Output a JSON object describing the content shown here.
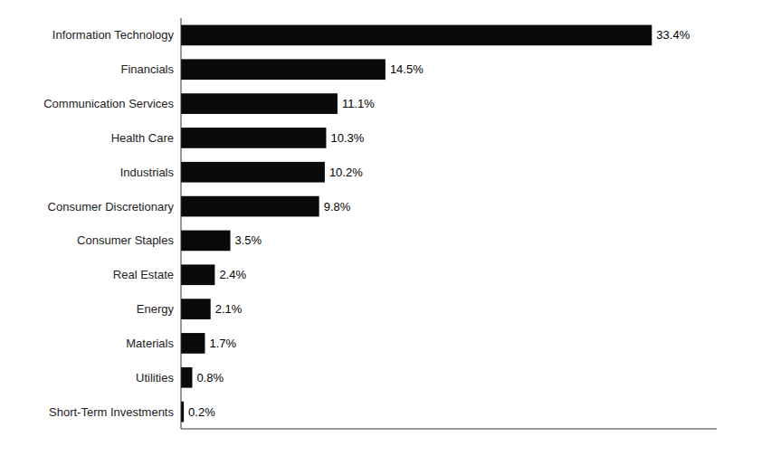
{
  "chart_data": {
    "type": "bar",
    "orientation": "horizontal",
    "categories": [
      "Short-Term Investments",
      "Utilities",
      "Materials",
      "Energy",
      "Real Estate",
      "Consumer Staples",
      "Consumer Discretionary",
      "Industrials",
      "Health Care",
      "Communication Services",
      "Financials",
      "Information Technology"
    ],
    "values": [
      0.2,
      0.8,
      1.7,
      2.1,
      2.4,
      3.5,
      9.8,
      10.2,
      10.3,
      11.1,
      14.5,
      33.4
    ],
    "value_labels": [
      "0.2%",
      "0.8%",
      "1.7%",
      "2.1%",
      "2.4%",
      "3.5%",
      "9.8%",
      "10.2%",
      "10.3%",
      "11.1%",
      "14.5%",
      "33.4%"
    ],
    "data_labels": true,
    "color": "#0a0a0a",
    "xlim": [
      0,
      38
    ],
    "tick_labels": "y"
  }
}
